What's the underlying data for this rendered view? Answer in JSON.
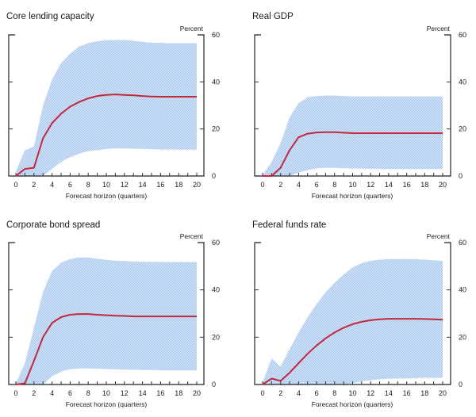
{
  "colors": {
    "band_light": "#d6e4f8",
    "band_dark": "#a9c9f2",
    "median_line": "#c2283a",
    "axis": "#222222"
  },
  "chart_data": [
    {
      "type": "area",
      "title": "Core lending capacity",
      "unit_label": "Percent",
      "xlabel": "Forecast horizon (quarters)",
      "ylabel": "Percent",
      "xlim": [
        0,
        20
      ],
      "ylim": [
        0,
        60
      ],
      "x_ticks": [
        0,
        2,
        4,
        6,
        8,
        10,
        12,
        14,
        16,
        18,
        20
      ],
      "y_ticks": [
        0,
        20,
        40,
        60
      ],
      "grid": false,
      "x": [
        0,
        1,
        2,
        3,
        4,
        5,
        6,
        7,
        8,
        9,
        10,
        11,
        12,
        13,
        14,
        15,
        16,
        17,
        18,
        19,
        20
      ],
      "series": [
        {
          "name": "Median",
          "values": [
            0,
            3,
            3.5,
            16,
            22.5,
            26.5,
            29.5,
            31.5,
            33,
            34,
            34.5,
            34.7,
            34.5,
            34.3,
            34,
            33.8,
            33.7,
            33.7,
            33.7,
            33.7,
            33.7
          ]
        },
        {
          "name": "Upper band",
          "values": [
            2,
            11,
            12.5,
            30,
            41,
            48,
            52,
            55,
            56.5,
            57.3,
            57.7,
            57.8,
            57.8,
            57.5,
            57,
            56.7,
            56.6,
            56.5,
            56.5,
            56.5,
            56.5
          ]
        },
        {
          "name": "Lower band",
          "values": [
            0,
            0,
            0,
            0,
            3,
            6,
            8,
            9.5,
            10.5,
            11,
            11.5,
            11.7,
            11.7,
            11.6,
            11.5,
            11.4,
            11.3,
            11.3,
            11.2,
            11.2,
            11.2
          ]
        }
      ]
    },
    {
      "type": "area",
      "title": "Real GDP",
      "unit_label": "Percent",
      "xlabel": "Forecast horizon (quarters)",
      "ylabel": "Percent",
      "xlim": [
        0,
        20
      ],
      "ylim": [
        0,
        60
      ],
      "x_ticks": [
        0,
        2,
        4,
        6,
        8,
        10,
        12,
        14,
        16,
        18,
        20
      ],
      "y_ticks": [
        0,
        20,
        40,
        60
      ],
      "grid": false,
      "x": [
        0,
        1,
        2,
        3,
        4,
        5,
        6,
        7,
        8,
        9,
        10,
        11,
        12,
        13,
        14,
        15,
        16,
        17,
        18,
        19,
        20
      ],
      "series": [
        {
          "name": "Median",
          "values": [
            0,
            0,
            3.5,
            11,
            16.5,
            18,
            18.5,
            18.6,
            18.6,
            18.4,
            18.2,
            18.2,
            18.2,
            18.2,
            18.2,
            18.2,
            18.2,
            18.2,
            18.2,
            18.2,
            18.2
          ]
        },
        {
          "name": "Upper band",
          "values": [
            0.5,
            6,
            14,
            25,
            31,
            33.5,
            34,
            34.2,
            34.2,
            34,
            33.8,
            33.8,
            33.8,
            33.8,
            33.8,
            33.8,
            33.8,
            33.8,
            33.8,
            33.8,
            33.8
          ]
        },
        {
          "name": "Lower band",
          "values": [
            0,
            0,
            0,
            0,
            1.5,
            2.5,
            3.2,
            3.5,
            3.5,
            3.3,
            3.2,
            3.1,
            3.1,
            3,
            3,
            3,
            3,
            3,
            3,
            3,
            3
          ]
        }
      ]
    },
    {
      "type": "area",
      "title": "Corporate bond spread",
      "unit_label": "Percent",
      "xlabel": "Forecast horizon (quarters)",
      "ylabel": "Percent",
      "xlim": [
        0,
        20
      ],
      "ylim": [
        0,
        60
      ],
      "x_ticks": [
        0,
        2,
        4,
        6,
        8,
        10,
        12,
        14,
        16,
        18,
        20
      ],
      "y_ticks": [
        0,
        20,
        40,
        60
      ],
      "grid": false,
      "x": [
        0,
        1,
        2,
        3,
        4,
        5,
        6,
        7,
        8,
        9,
        10,
        11,
        12,
        13,
        14,
        15,
        16,
        17,
        18,
        19,
        20
      ],
      "series": [
        {
          "name": "Median",
          "values": [
            0,
            0.5,
            10,
            20,
            26,
            28.5,
            29.5,
            29.8,
            29.8,
            29.5,
            29.3,
            29.1,
            29,
            28.8,
            28.8,
            28.8,
            28.8,
            28.8,
            28.8,
            28.8,
            28.8
          ]
        },
        {
          "name": "Upper band",
          "values": [
            0.5,
            9,
            24,
            39,
            48,
            51.5,
            53,
            53.7,
            53.7,
            53.2,
            52.7,
            52.4,
            52.2,
            52,
            51.9,
            51.8,
            51.8,
            51.7,
            51.7,
            51.7,
            51.7
          ]
        },
        {
          "name": "Lower band",
          "values": [
            0,
            0,
            0,
            0,
            3.5,
            5.5,
            6.5,
            6.8,
            6.8,
            6.7,
            6.5,
            6.4,
            6.3,
            6.2,
            6.1,
            6.1,
            6,
            6,
            6,
            6,
            6
          ]
        }
      ]
    },
    {
      "type": "area",
      "title": "Federal funds rate",
      "unit_label": "Percent",
      "xlabel": "Forecast horizon (quarters)",
      "ylabel": "Percent",
      "xlim": [
        0,
        20
      ],
      "ylim": [
        0,
        60
      ],
      "x_ticks": [
        0,
        2,
        4,
        6,
        8,
        10,
        12,
        14,
        16,
        18,
        20
      ],
      "y_ticks": [
        0,
        20,
        40,
        60
      ],
      "grid": false,
      "x": [
        0,
        1,
        2,
        3,
        4,
        5,
        6,
        7,
        8,
        9,
        10,
        11,
        12,
        13,
        14,
        15,
        16,
        17,
        18,
        19,
        20
      ],
      "series": [
        {
          "name": "Median",
          "values": [
            0,
            2.5,
            1.5,
            5,
            9,
            13,
            16.5,
            19.5,
            22,
            24,
            25.5,
            26.5,
            27.2,
            27.6,
            27.8,
            27.8,
            27.8,
            27.8,
            27.7,
            27.6,
            27.4
          ]
        },
        {
          "name": "Upper band",
          "values": [
            1,
            11,
            7.5,
            15,
            22,
            28.5,
            34,
            39,
            43,
            46.5,
            49.5,
            51.3,
            52.3,
            52.8,
            53,
            53,
            53,
            53,
            52.8,
            52.5,
            52.3
          ]
        },
        {
          "name": "Lower band",
          "values": [
            0,
            0,
            0,
            0,
            0,
            0,
            0,
            0,
            0,
            0,
            0.5,
            1.3,
            1.8,
            2.2,
            2.4,
            2.5,
            2.6,
            2.7,
            2.8,
            2.8,
            2.8
          ]
        }
      ]
    }
  ]
}
